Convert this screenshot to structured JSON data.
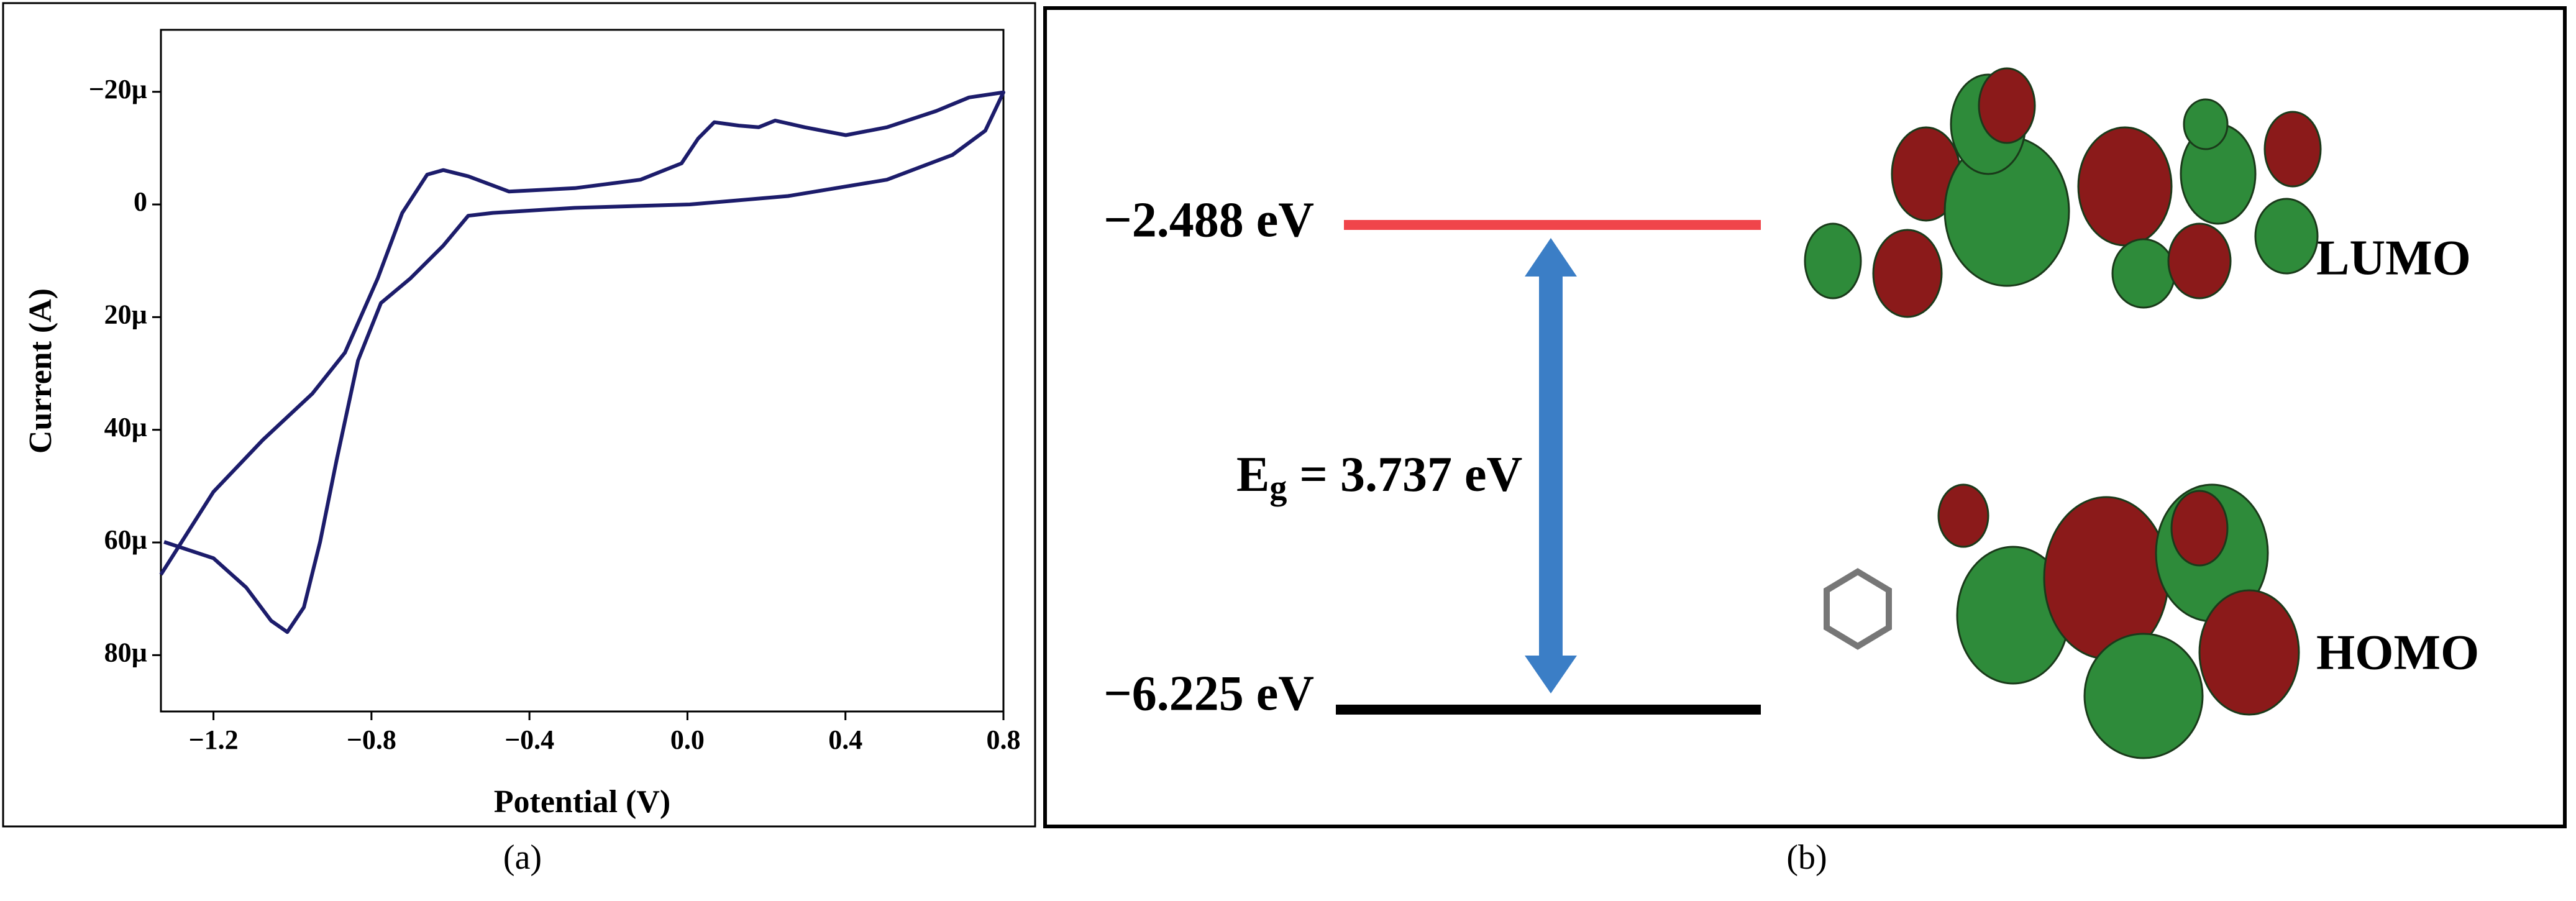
{
  "chart_data": {
    "type": "line",
    "x_label": "Potential (V)",
    "y_label": "Current (A)",
    "color": "#1c1c6b",
    "x": [
      -1.333,
      -1.2,
      -1.075,
      -0.95,
      -0.867,
      -0.784,
      -0.722,
      -0.659,
      -0.618,
      -0.555,
      -0.452,
      -0.285,
      -0.119,
      -0.015,
      0.027,
      0.068,
      0.13,
      0.18,
      0.222,
      0.297,
      0.401,
      0.505,
      0.63,
      0.713,
      0.8,
      0.754,
      0.671,
      0.505,
      0.255,
      0.006,
      -0.285,
      -0.493,
      -0.555,
      -0.618,
      -0.701,
      -0.776,
      -0.834,
      -0.888,
      -0.93,
      -0.971,
      -1.013,
      -1.054,
      -1.117,
      -1.2,
      -1.325
    ],
    "values": [
      6.57e-05,
      5.1e-05,
      4.18e-05,
      3.36e-05,
      2.63e-05,
      1.31e-05,
      1.5e-06,
      -5.3e-06,
      -6.1e-06,
      -5e-06,
      -2.3e-06,
      -2.9e-06,
      -4.4e-06,
      -7.3e-06,
      -1.17e-05,
      -1.46e-05,
      -1.4e-05,
      -1.37e-05,
      -1.49e-05,
      -1.37e-05,
      -1.23e-05,
      -1.37e-05,
      -1.66e-05,
      -1.9e-05,
      -1.99e-05,
      -1.31e-05,
      -8.8e-06,
      -4.4e-06,
      -1.5e-06,
      0,
      6e-07,
      1.5e-06,
      2e-06,
      7.3e-06,
      1.31e-05,
      1.75e-05,
      2.77e-05,
      4.53e-05,
      5.99e-05,
      7.15e-05,
      7.59e-05,
      7.39e-05,
      6.8e-05,
      6.28e-05,
      5.99e-05
    ],
    "xlim": [
      -1.333,
      0.8
    ],
    "xticks": [
      {
        "value": -1.2,
        "label": "−1.2"
      },
      {
        "value": -0.8,
        "label": "−0.8"
      },
      {
        "value": -0.4,
        "label": "−0.4"
      },
      {
        "value": 0,
        "label": "0.0"
      },
      0.4,
      0.8
    ],
    "ylim": [
      9e-05,
      -3.1e-05
    ],
    "yticks": [
      {
        "value": -2e-05,
        "label": "−20µ"
      },
      0,
      {
        "value": 2e-05,
        "label": "20µ"
      },
      {
        "value": 4e-05,
        "label": "40µ"
      },
      {
        "value": 6e-05,
        "label": "60µ"
      },
      {
        "value": 8e-05,
        "label": "80µ"
      }
    ],
    "caption": "(a)"
  },
  "diagram": {
    "lumo_energy": "−2.488 eV",
    "homo_energy": "−6.225 eV",
    "gap_label": {
      "symbol": "E",
      "subscript": "g",
      "text": " = 3.737 eV"
    },
    "lumo_label": "LUMO",
    "homo_label": "HOMO",
    "caption": "(b)"
  }
}
